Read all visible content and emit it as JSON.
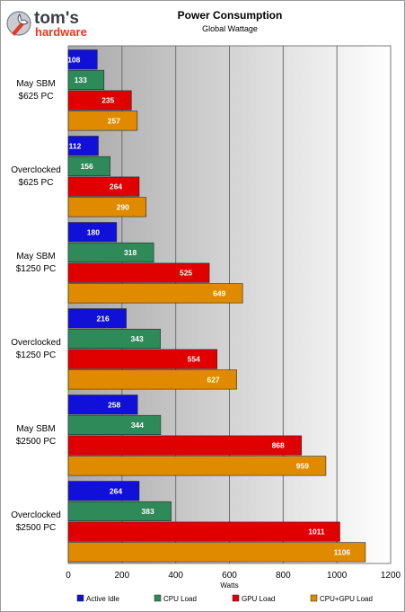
{
  "logo": {
    "line1": "tom's",
    "line2": "hardware",
    "icon": "wrench-icon"
  },
  "chart_data": {
    "type": "bar",
    "orientation": "horizontal",
    "title": "Power Consumption",
    "subtitle": "Global Wattage",
    "xlabel": "Watts",
    "xlim": [
      0,
      1200
    ],
    "xticks": [
      0,
      200,
      400,
      600,
      800,
      1000,
      1200
    ],
    "grid": true,
    "legend_position": "bottom",
    "categories": [
      [
        "May SBM",
        "$625 PC"
      ],
      [
        "Overclocked",
        "$625 PC"
      ],
      [
        "May SBM",
        "$1250 PC"
      ],
      [
        "Overclocked",
        "$1250 PC"
      ],
      [
        "May SBM",
        "$2500 PC"
      ],
      [
        "Overclocked",
        "$2500 PC"
      ]
    ],
    "series": [
      {
        "name": "Active Idle",
        "color": "#1010d8",
        "values": [
          108,
          112,
          180,
          216,
          258,
          264
        ]
      },
      {
        "name": "CPU Load",
        "color": "#2e8a58",
        "values": [
          133,
          156,
          318,
          343,
          344,
          383
        ]
      },
      {
        "name": "GPU Load",
        "color": "#e00000",
        "values": [
          235,
          264,
          525,
          554,
          868,
          1011
        ]
      },
      {
        "name": "CPU+GPU Load",
        "color": "#e08a00",
        "values": [
          257,
          290,
          649,
          627,
          959,
          1106
        ]
      }
    ]
  }
}
